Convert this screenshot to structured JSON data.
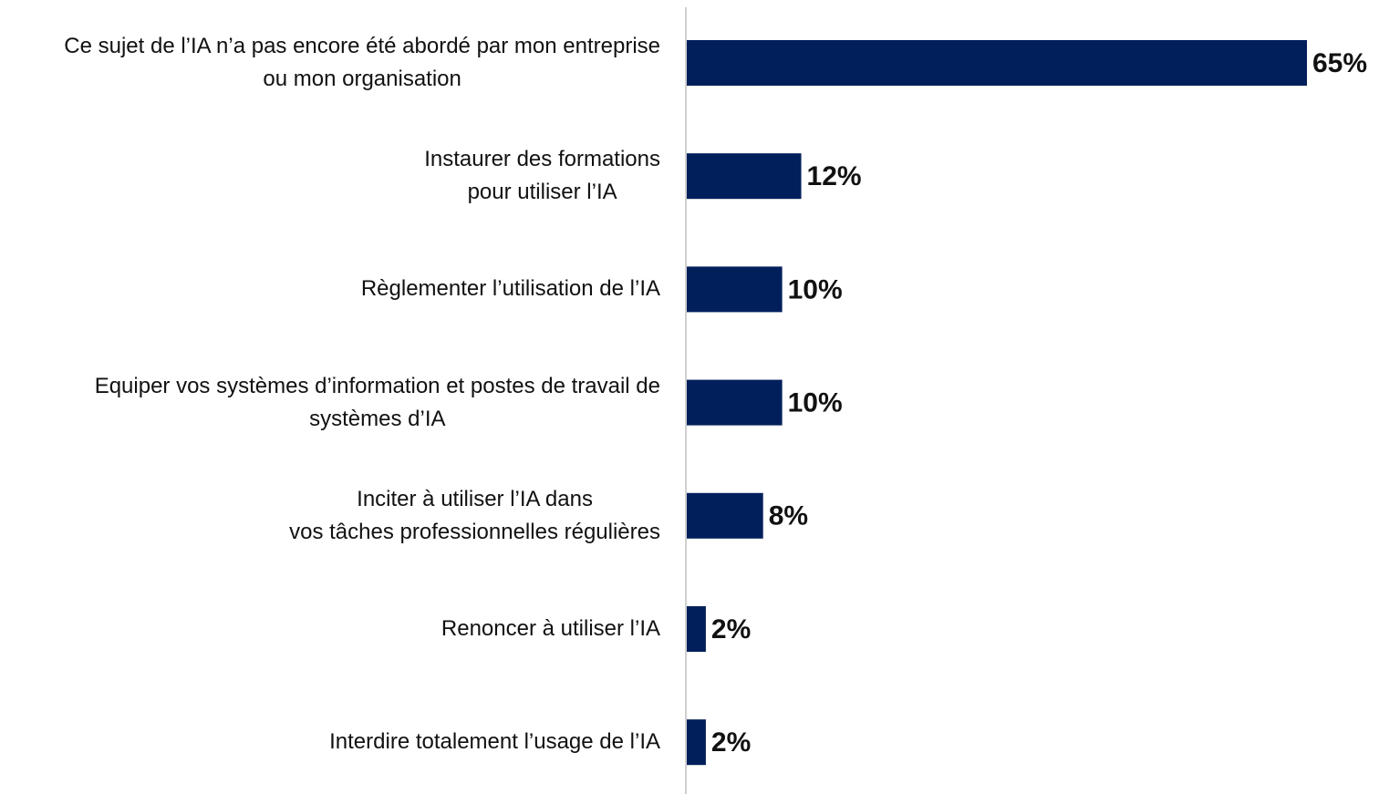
{
  "chart_data": {
    "type": "bar",
    "orientation": "horizontal",
    "categories": [
      "Ce sujet de l’IA n’a pas encore été abordé par mon entreprise\nou mon organisation",
      "Instaurer des formations\npour utiliser l’IA",
      "Règlementer l’utilisation de l’IA",
      "Equiper vos systèmes d’information et postes de travail de\nsystèmes d’IA",
      "Inciter à utiliser l’IA dans\nvos tâches professionnelles régulières",
      "Renoncer à utiliser l’IA",
      "Interdire totalement l’usage de l’IA"
    ],
    "values": [
      65,
      12,
      10,
      10,
      8,
      2,
      2
    ],
    "value_labels": [
      "65%",
      "12%",
      "10%",
      "10%",
      "8%",
      "2%",
      "2%"
    ],
    "color": "#001f5b"
  }
}
